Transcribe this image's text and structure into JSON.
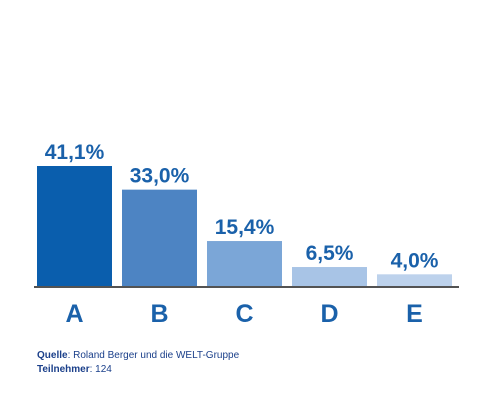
{
  "colors": {
    "label_text": "#1a61aa",
    "axis_line": "#1a1a1a",
    "source_text": "#1a3f8a"
  },
  "chart_data": {
    "type": "bar",
    "categories": [
      "A",
      "B",
      "C",
      "D",
      "E"
    ],
    "values": [
      41.1,
      33.0,
      15.4,
      6.5,
      4.0
    ],
    "value_labels": [
      "41,1%",
      "33,0%",
      "15,4%",
      "6,5%",
      "4,0%"
    ],
    "bar_colors": [
      "#0a5ead",
      "#4d84c3",
      "#7ba6d7",
      "#a8c4e6",
      "#bdd2ec"
    ],
    "ylim": [
      0,
      41.1
    ],
    "grid": false,
    "legend": "none"
  },
  "footer": {
    "source_label": "Quelle",
    "source_text": ": Roland Berger und die WELT-Gruppe",
    "participants_label": "Teilnehmer",
    "participants_text": ": 124"
  }
}
